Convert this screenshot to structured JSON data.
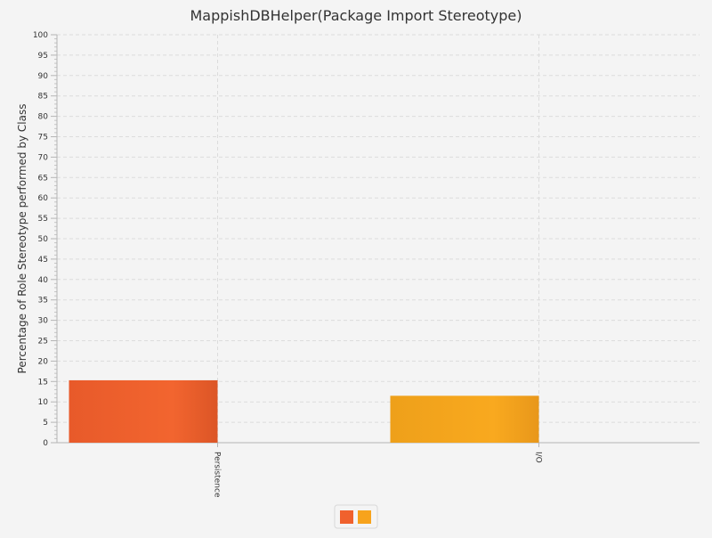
{
  "chart_data": {
    "type": "bar",
    "title": "MappishDBHelper(Package Import Stereotype)",
    "xlabel": "",
    "ylabel": "Percentage of Role Stereotype performed by Class",
    "categories": [
      "Persistence",
      "I/O"
    ],
    "values": [
      15.3,
      11.5
    ],
    "ylim": [
      0,
      100
    ],
    "ytick_step": 5,
    "yticks": [
      "0",
      "5",
      "10",
      "15",
      "20",
      "25",
      "30",
      "35",
      "40",
      "45",
      "50",
      "55",
      "60",
      "65",
      "70",
      "75",
      "80",
      "85",
      "90",
      "95",
      "100"
    ],
    "grid": true,
    "legend_position": "bottom-center",
    "colors": [
      "#f0612d",
      "#f7a31c"
    ]
  }
}
